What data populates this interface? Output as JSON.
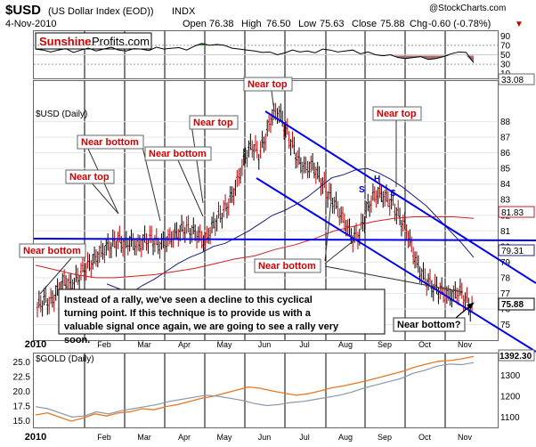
{
  "header": {
    "symbol": "$USD",
    "description": "(US Dollar Index (EOD))",
    "exchange": "INDX",
    "date": "4-Nov-2010",
    "open_label": "Open",
    "open": "76.38",
    "high_label": "High",
    "high": "76.50",
    "low_label": "Low",
    "low": "75.63",
    "close_label": "Close",
    "close": "75.88",
    "chg_label": "Chg",
    "chg": "-0.60 (-0.78%)",
    "chg_arrow": "▼",
    "watermark": "@StockCharts.com"
  },
  "logo": {
    "part1": "Sunshine",
    "part2": "Profits.com"
  },
  "chart_data": [
    {
      "type": "line",
      "panel": "rsi",
      "y_ticks": [
        "90",
        "70",
        "50",
        "30",
        "10"
      ],
      "ylim": [
        0,
        100
      ],
      "last_value_label": "33.08",
      "series": [
        {
          "values": [
            62,
            60,
            56,
            60,
            63,
            55,
            60,
            64,
            58,
            62,
            66,
            60,
            58,
            63,
            62,
            59,
            66,
            62,
            64,
            65,
            60,
            68,
            74,
            70,
            72,
            70,
            64,
            62,
            60,
            58,
            55,
            56,
            50,
            54,
            60,
            56,
            58,
            54,
            62,
            60,
            56,
            58,
            60,
            52,
            56,
            50,
            48,
            50,
            44,
            42,
            44,
            46,
            40,
            42,
            46,
            52,
            56,
            55,
            33
          ]
        }
      ]
    },
    {
      "type": "line",
      "panel": "price",
      "title": "$USD (Daily)",
      "y_ticks": [
        "88",
        "87",
        "86",
        "85",
        "84",
        "83",
        "82",
        "81",
        "80",
        "79",
        "78",
        "77",
        "76",
        "75"
      ],
      "ylim": [
        74.0,
        90.6
      ],
      "x_ticks": [
        "2010",
        "Feb",
        "Mar",
        "Apr",
        "May",
        "Jun",
        "Jul",
        "Aug",
        "Sep",
        "Oct",
        "Nov"
      ],
      "series": [
        {
          "values": [
            76.1,
            76.6,
            76.4,
            77.1,
            77.8,
            77.5,
            78.0,
            78.6,
            78.9,
            79.4,
            79.8,
            80.1,
            80.4,
            80.2,
            80.3,
            80.0,
            80.4,
            80.5,
            80.1,
            80.2,
            80.6,
            80.9,
            81.2,
            81.0,
            80.7,
            80.3,
            81.2,
            81.9,
            82.4,
            83.2,
            84.4,
            85.8,
            86.5,
            85.9,
            87.0,
            88.4,
            88.6,
            87.5,
            86.5,
            85.4,
            85.0,
            85.2,
            84.4,
            83.6,
            83.0,
            82.2,
            81.4,
            80.5,
            80.8,
            82.2,
            83.2,
            83.4,
            83.1,
            82.7,
            81.8,
            81.1,
            79.6,
            78.4,
            77.8,
            77.4,
            77.2,
            76.8,
            76.9,
            77.1,
            76.4,
            75.9
          ]
        },
        {
          "name": "",
          "values": [
            77.6,
            77.3,
            77.0,
            77.5,
            77.9,
            78.4,
            78.9,
            79.3,
            79.6,
            80.0,
            80.2,
            80.6,
            81.0,
            81.5,
            82.0,
            82.3,
            82.7,
            83.2,
            83.8,
            84.4,
            84.6,
            84.9,
            85.0,
            84.7,
            84.3,
            83.8,
            83.2,
            82.6,
            81.8,
            81.0,
            80.2,
            79.3
          ]
        },
        {
          "name": "",
          "values": [
            78.8,
            78.5,
            78.2,
            78.0,
            78.0,
            78.1,
            78.2,
            78.4,
            78.6,
            78.9,
            79.2,
            79.4,
            79.8,
            80.1,
            80.5,
            81.0,
            81.3,
            81.6,
            81.8,
            81.9,
            81.9,
            81.9,
            81.8
          ]
        }
      ],
      "price_labels": [
        "81.83",
        "79.31",
        "75.88"
      ],
      "pattern_labels": [
        "S",
        "H",
        "S"
      ],
      "annotations": [
        "Near bottom",
        "Near top",
        "Near bottom",
        "Near bottom",
        "Near top",
        "Near top",
        "Near bottom",
        "Near top",
        "Near bottom?"
      ],
      "text_box": "Instead of a rally, we've seen a decline to this cyclical turning point. If this technique is to provide us with a valuable signal once again, we are going to see a rally very soon."
    },
    {
      "type": "line",
      "panel": "gold",
      "title": "$GOLD (Daily)",
      "y_ticks": [
        "25.0",
        "22.5",
        "20.0",
        "17.5",
        "15.0"
      ],
      "right_ticks": [
        "1300",
        "1200",
        "1100"
      ],
      "ylim": [
        1050,
        1410
      ],
      "last_value_label": "1392.30",
      "x_ticks": [
        "2010",
        "Feb",
        "Mar",
        "Apr",
        "May",
        "Jun",
        "Jul",
        "Aug",
        "Sep",
        "Oct",
        "Nov"
      ],
      "series": [
        {
          "values": [
            1110,
            1120,
            1100,
            1080,
            1095,
            1115,
            1105,
            1120,
            1125,
            1140,
            1135,
            1150,
            1160,
            1175,
            1190,
            1200,
            1215,
            1230,
            1245,
            1238,
            1225,
            1215,
            1205,
            1212,
            1225,
            1240,
            1250,
            1262,
            1275,
            1290,
            1305,
            1320,
            1340,
            1355,
            1368,
            1372,
            1380,
            1392
          ]
        },
        {
          "values": [
            1150,
            1140,
            1120,
            1100,
            1105,
            1125,
            1115,
            1130,
            1140,
            1150,
            1160,
            1175,
            1185,
            1195,
            1205,
            1200,
            1190,
            1180,
            1165,
            1155,
            1160,
            1170,
            1175,
            1185,
            1195,
            1205,
            1220,
            1240,
            1255,
            1270,
            1285,
            1310,
            1325,
            1345,
            1355,
            1352,
            1362
          ]
        }
      ]
    }
  ],
  "colors": {
    "arrow": "#0000ee",
    "callout_text": "#d00000",
    "ma_fast": "#1a1a80",
    "ma_slow": "#d02020",
    "gold": "#e87722",
    "grey": "#8a96a8"
  }
}
